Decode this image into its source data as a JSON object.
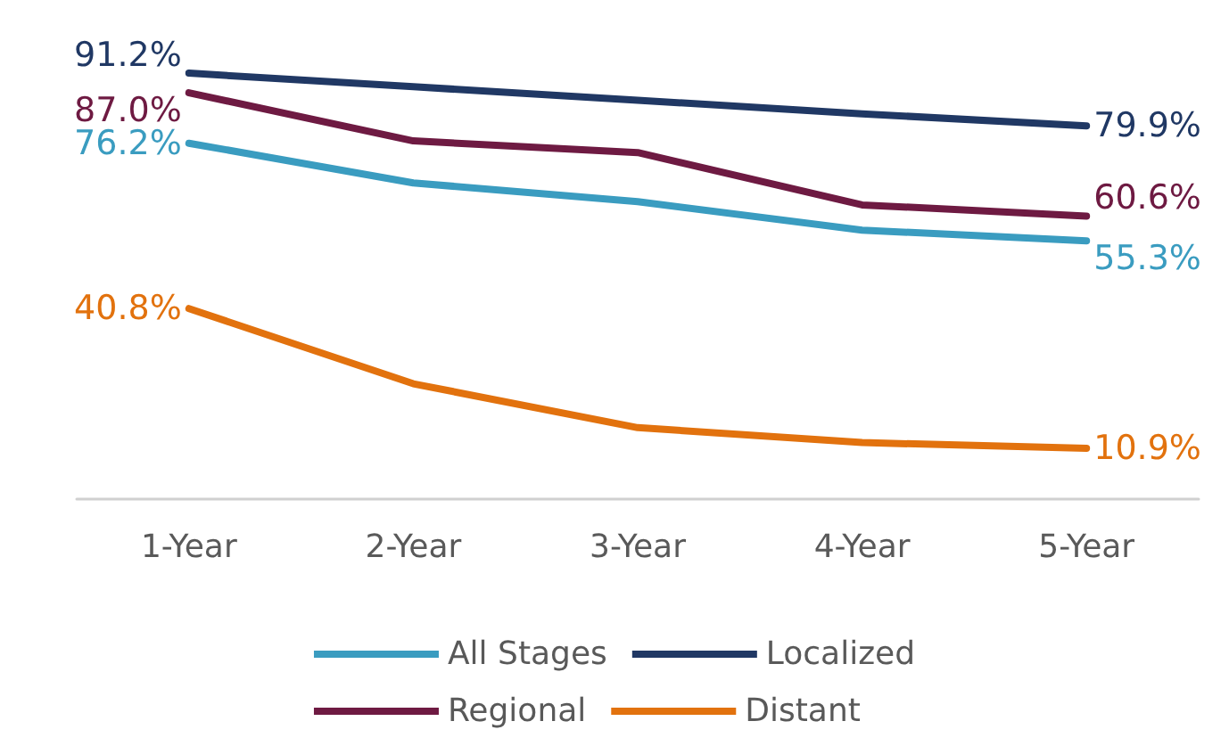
{
  "chart_data": {
    "type": "line",
    "categories": [
      "1-Year",
      "2-Year",
      "3-Year",
      "4-Year",
      "5-Year"
    ],
    "series": [
      {
        "name": "All Stages",
        "color": "#3a9cc0",
        "values": [
          76.2,
          67.7,
          63.7,
          57.6,
          55.3
        ],
        "value_labels": [
          "76.2%",
          null,
          null,
          null,
          "55.3%"
        ]
      },
      {
        "name": "Localized",
        "color": "#203864",
        "values": [
          91.2,
          88.3,
          85.4,
          82.5,
          79.9
        ],
        "value_labels": [
          "91.2%",
          null,
          null,
          null,
          "79.9%"
        ]
      },
      {
        "name": "Regional",
        "color": "#6e1a42",
        "values": [
          87.0,
          76.7,
          74.2,
          63.0,
          60.6
        ],
        "value_labels": [
          "87.0%",
          null,
          null,
          null,
          "60.6%"
        ]
      },
      {
        "name": "Distant",
        "color": "#e2720e",
        "values": [
          40.8,
          24.7,
          15.3,
          12.1,
          10.9
        ],
        "value_labels": [
          "40.8%",
          null,
          null,
          null,
          "10.9%"
        ]
      }
    ],
    "tick_labels": "x",
    "grid": false,
    "legend": "bottom",
    "marker": "none",
    "line_style": "solid"
  }
}
